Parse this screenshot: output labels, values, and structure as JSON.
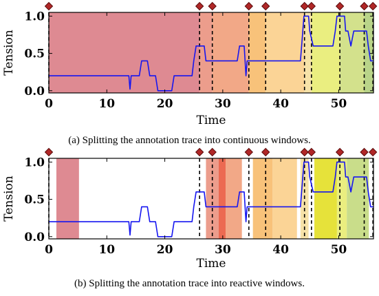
{
  "chart_data": [
    {
      "type": "line",
      "caption": "(a) Splitting the annotation trace into continuous windows.",
      "xlabel": "Time",
      "ylabel": "Tension",
      "xlim": [
        0,
        56
      ],
      "ylim": [
        -0.03,
        1.05
      ],
      "xticks": [
        "0",
        "10",
        "20",
        "30",
        "40",
        "50"
      ],
      "yticks": [
        "0.0",
        "0.5",
        "1.0"
      ],
      "series": [
        {
          "values": [
            [
              0,
              0.2
            ],
            [
              13.8,
              0.2
            ],
            [
              14,
              0.02
            ],
            [
              14.2,
              0.2
            ],
            [
              15.6,
              0.2
            ],
            [
              16,
              0.4
            ],
            [
              17,
              0.4
            ],
            [
              17.4,
              0.2
            ],
            [
              18.4,
              0.2
            ],
            [
              18.8,
              0
            ],
            [
              21.2,
              0
            ],
            [
              21.6,
              0.2
            ],
            [
              24.7,
              0.2
            ],
            [
              25,
              0.4
            ],
            [
              25.4,
              0.6
            ],
            [
              26.8,
              0.6
            ],
            [
              27.1,
              0.4
            ],
            [
              32.5,
              0.4
            ],
            [
              32.9,
              0.6
            ],
            [
              33.7,
              0.6
            ],
            [
              34,
              0.2
            ],
            [
              34.2,
              0.4
            ],
            [
              43.4,
              0.4
            ],
            [
              43.8,
              0.8
            ],
            [
              44,
              1
            ],
            [
              44.8,
              1
            ],
            [
              45,
              0.8
            ],
            [
              45.6,
              0.6
            ],
            [
              49,
              0.6
            ],
            [
              49.4,
              0.8
            ],
            [
              49.7,
              1
            ],
            [
              51,
              1
            ],
            [
              51.2,
              0.8
            ],
            [
              51.6,
              0.8
            ],
            [
              52.1,
              0.6
            ],
            [
              52.6,
              0.8
            ],
            [
              54.8,
              0.8
            ],
            [
              55.1,
              0.6
            ],
            [
              55.5,
              0.4
            ],
            [
              56,
              0.4
            ]
          ]
        }
      ],
      "splits": [
        0,
        26,
        28.2,
        34.5,
        37.4,
        44.1,
        45.3,
        50.2,
        54.4,
        55.9
      ],
      "windows": [
        {
          "x0": 0,
          "x1": 26,
          "color": "#de8a92"
        },
        {
          "x0": 26,
          "x1": 28.2,
          "color": "#ec9d8c"
        },
        {
          "x0": 28.2,
          "x1": 34.5,
          "color": "#f2a887"
        },
        {
          "x0": 34.5,
          "x1": 37.4,
          "color": "#f8c27a"
        },
        {
          "x0": 37.4,
          "x1": 44.1,
          "color": "#fbd496"
        },
        {
          "x0": 44.1,
          "x1": 45.3,
          "color": "#f6e2a8"
        },
        {
          "x0": 45.3,
          "x1": 50.2,
          "color": "#eaee80"
        },
        {
          "x0": 50.2,
          "x1": 54.4,
          "color": "#d3e18c"
        },
        {
          "x0": 54.4,
          "x1": 56,
          "color": "#b9d489"
        }
      ]
    },
    {
      "type": "line",
      "caption": "(b) Splitting the annotation trace into reactive windows.",
      "xlabel": "Time",
      "ylabel": "Tension",
      "xlim": [
        0,
        56
      ],
      "ylim": [
        -0.03,
        1.05
      ],
      "xticks": [
        "0",
        "10",
        "20",
        "30",
        "40",
        "50"
      ],
      "yticks": [
        "0.0",
        "0.5",
        "1.0"
      ],
      "series": [
        {
          "values": [
            [
              0,
              0.2
            ],
            [
              13.8,
              0.2
            ],
            [
              14,
              0.02
            ],
            [
              14.2,
              0.2
            ],
            [
              15.6,
              0.2
            ],
            [
              16,
              0.4
            ],
            [
              17,
              0.4
            ],
            [
              17.4,
              0.2
            ],
            [
              18.4,
              0.2
            ],
            [
              18.8,
              0
            ],
            [
              21.2,
              0
            ],
            [
              21.6,
              0.2
            ],
            [
              24.7,
              0.2
            ],
            [
              25,
              0.4
            ],
            [
              25.4,
              0.6
            ],
            [
              26.8,
              0.6
            ],
            [
              27.1,
              0.4
            ],
            [
              32.5,
              0.4
            ],
            [
              32.9,
              0.6
            ],
            [
              33.7,
              0.6
            ],
            [
              34,
              0.2
            ],
            [
              34.2,
              0.4
            ],
            [
              43.4,
              0.4
            ],
            [
              43.8,
              0.8
            ],
            [
              44,
              1
            ],
            [
              44.8,
              1
            ],
            [
              45,
              0.8
            ],
            [
              45.6,
              0.6
            ],
            [
              49,
              0.6
            ],
            [
              49.4,
              0.8
            ],
            [
              49.7,
              1
            ],
            [
              51,
              1
            ],
            [
              51.2,
              0.8
            ],
            [
              51.6,
              0.8
            ],
            [
              52.1,
              0.6
            ],
            [
              52.6,
              0.8
            ],
            [
              54.8,
              0.8
            ],
            [
              55.1,
              0.6
            ],
            [
              55.5,
              0.4
            ],
            [
              56,
              0.4
            ]
          ]
        }
      ],
      "splits": [
        0,
        26,
        28.2,
        34.5,
        37.4,
        44.1,
        45.3,
        50.2,
        54.4,
        55.9
      ],
      "windows": [
        {
          "x0": 1.3,
          "x1": 5.2,
          "color": "#de8a92"
        },
        {
          "x0": 27.1,
          "x1": 29.3,
          "color": "#ec9d8c"
        },
        {
          "x0": 29.3,
          "x1": 30.5,
          "color": "#ec6a52"
        },
        {
          "x0": 30.5,
          "x1": 33.3,
          "color": "#f2a887"
        },
        {
          "x0": 35.2,
          "x1": 38.6,
          "color": "#f8c27a"
        },
        {
          "x0": 38.6,
          "x1": 42.8,
          "color": "#fbd496"
        },
        {
          "x0": 43.4,
          "x1": 44.8,
          "color": "#f6e2a8"
        },
        {
          "x0": 45.8,
          "x1": 49.7,
          "color": "#e6e23a"
        },
        {
          "x0": 49.7,
          "x1": 51.4,
          "color": "#eaee80"
        },
        {
          "x0": 51.4,
          "x1": 55.2,
          "color": "#c9dd8a"
        }
      ]
    }
  ]
}
